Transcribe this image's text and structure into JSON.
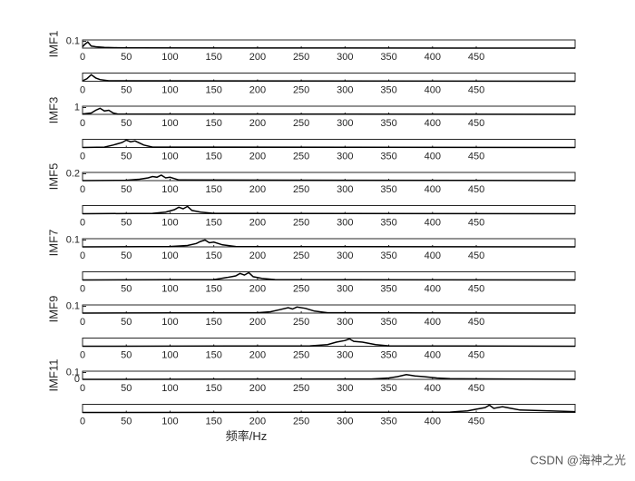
{
  "chart_data": [
    {
      "type": "line",
      "ylabel": "IMF1",
      "color": "#000000",
      "xlim": [
        0,
        563
      ],
      "xticks": [
        0,
        50,
        100,
        150,
        200,
        250,
        300,
        350,
        400,
        450
      ],
      "ylim": [
        0,
        0.12
      ],
      "yticks": [
        0.1
      ],
      "x": [
        0,
        3,
        6,
        10,
        15,
        25,
        40,
        60,
        563
      ],
      "values": [
        0.02,
        0.06,
        0.09,
        0.03,
        0.02,
        0.01,
        0.005,
        0.003,
        0
      ]
    },
    {
      "type": "line",
      "color": "#000000",
      "xlim": [
        0,
        563
      ],
      "xticks": [
        0,
        50,
        100,
        150,
        200,
        250,
        300,
        350,
        400,
        450
      ],
      "ylim": [
        0,
        1
      ],
      "x": [
        0,
        5,
        10,
        15,
        20,
        30,
        563
      ],
      "values": [
        0.05,
        0.3,
        0.8,
        0.4,
        0.2,
        0.05,
        0
      ]
    },
    {
      "type": "line",
      "ylabel": "IMF3",
      "color": "#000000",
      "xlim": [
        0,
        563
      ],
      "xticks": [
        0,
        50,
        100,
        150,
        200,
        250,
        300,
        350,
        400,
        450
      ],
      "ylim": [
        0,
        1.2
      ],
      "yticks": [
        1
      ],
      "x": [
        0,
        10,
        15,
        20,
        25,
        30,
        35,
        40,
        563
      ],
      "values": [
        0.05,
        0.2,
        0.6,
        0.9,
        0.5,
        0.6,
        0.2,
        0.05,
        0
      ]
    },
    {
      "type": "line",
      "color": "#000000",
      "xlim": [
        0,
        563
      ],
      "xticks": [
        0,
        50,
        100,
        150,
        200,
        250,
        300,
        350,
        400,
        450
      ],
      "ylim": [
        0,
        1
      ],
      "x": [
        0,
        25,
        35,
        45,
        50,
        55,
        60,
        70,
        80,
        563
      ],
      "values": [
        0,
        0.05,
        0.3,
        0.6,
        0.9,
        0.7,
        0.8,
        0.3,
        0.05,
        0
      ]
    },
    {
      "type": "line",
      "ylabel": "IMF5",
      "color": "#000000",
      "xlim": [
        0,
        563
      ],
      "xticks": [
        0,
        50,
        100,
        150,
        200,
        250,
        300,
        350,
        400,
        450
      ],
      "ylim": [
        0,
        0.24
      ],
      "yticks": [
        0.2
      ],
      "x": [
        0,
        50,
        65,
        75,
        80,
        85,
        90,
        95,
        100,
        110,
        563
      ],
      "values": [
        0,
        0.01,
        0.04,
        0.08,
        0.12,
        0.1,
        0.16,
        0.08,
        0.1,
        0.02,
        0
      ]
    },
    {
      "type": "line",
      "color": "#000000",
      "xlim": [
        0,
        563
      ],
      "xticks": [
        0,
        50,
        100,
        150,
        200,
        250,
        300,
        350,
        400,
        450
      ],
      "ylim": [
        0,
        1
      ],
      "x": [
        0,
        80,
        95,
        105,
        110,
        115,
        120,
        125,
        135,
        150,
        563
      ],
      "values": [
        0,
        0.05,
        0.2,
        0.5,
        0.8,
        0.6,
        0.9,
        0.4,
        0.2,
        0.05,
        0
      ]
    },
    {
      "type": "line",
      "ylabel": "IMF7",
      "color": "#000000",
      "xlim": [
        0,
        563
      ],
      "xticks": [
        0,
        50,
        100,
        150,
        200,
        250,
        300,
        350,
        400,
        450
      ],
      "ylim": [
        0,
        0.12
      ],
      "yticks": [
        0.1
      ],
      "x": [
        0,
        100,
        120,
        130,
        135,
        140,
        145,
        150,
        160,
        175,
        563
      ],
      "values": [
        0,
        0.005,
        0.02,
        0.05,
        0.08,
        0.1,
        0.06,
        0.07,
        0.03,
        0.005,
        0
      ]
    },
    {
      "type": "line",
      "color": "#000000",
      "xlim": [
        0,
        563
      ],
      "xticks": [
        0,
        50,
        100,
        150,
        200,
        250,
        300,
        350,
        400,
        450
      ],
      "ylim": [
        0,
        1
      ],
      "x": [
        0,
        150,
        165,
        175,
        180,
        185,
        190,
        195,
        205,
        220,
        563
      ],
      "values": [
        0,
        0.05,
        0.3,
        0.5,
        0.8,
        0.6,
        0.9,
        0.4,
        0.2,
        0.05,
        0
      ]
    },
    {
      "type": "line",
      "ylabel": "IMF9",
      "color": "#000000",
      "xlim": [
        0,
        563
      ],
      "xticks": [
        0,
        50,
        100,
        150,
        200,
        250,
        300,
        350,
        400,
        450
      ],
      "ylim": [
        0,
        0.12
      ],
      "yticks": [
        0.1
      ],
      "x": [
        0,
        200,
        215,
        225,
        235,
        240,
        245,
        255,
        265,
        280,
        563
      ],
      "values": [
        0,
        0.005,
        0.02,
        0.05,
        0.08,
        0.06,
        0.09,
        0.07,
        0.03,
        0.005,
        0
      ]
    },
    {
      "type": "line",
      "color": "#000000",
      "xlim": [
        0,
        563
      ],
      "xticks": [
        0,
        50,
        100,
        150,
        200,
        250,
        300,
        350,
        400,
        450
      ],
      "ylim": [
        0,
        1
      ],
      "x": [
        0,
        260,
        280,
        290,
        300,
        305,
        310,
        320,
        335,
        350,
        563
      ],
      "values": [
        0,
        0.05,
        0.2,
        0.5,
        0.7,
        0.9,
        0.6,
        0.5,
        0.2,
        0.05,
        0
      ]
    },
    {
      "type": "line",
      "ylabel": "IMF11",
      "color": "#000000",
      "xlim": [
        0,
        563
      ],
      "xticks": [
        0,
        50,
        100,
        150,
        200,
        250,
        300,
        350,
        400,
        450
      ],
      "ylim": [
        0,
        0.12
      ],
      "yticks": [
        0,
        0.1
      ],
      "x": [
        0,
        330,
        350,
        360,
        370,
        375,
        380,
        390,
        405,
        420,
        563
      ],
      "values": [
        0,
        0.005,
        0.02,
        0.04,
        0.07,
        0.06,
        0.05,
        0.04,
        0.02,
        0.01,
        0
      ]
    },
    {
      "type": "line",
      "xlabel": "频率/Hz",
      "color": "#000000",
      "xlim": [
        0,
        563
      ],
      "xticks": [
        0,
        50,
        100,
        150,
        200,
        250,
        300,
        350,
        400,
        450
      ],
      "ylim": [
        0,
        1
      ],
      "x": [
        0,
        420,
        440,
        450,
        460,
        465,
        470,
        480,
        490,
        500,
        563
      ],
      "values": [
        0,
        0.05,
        0.2,
        0.4,
        0.6,
        0.9,
        0.5,
        0.7,
        0.5,
        0.3,
        0.1
      ]
    }
  ],
  "watermark": "CSDN @海神之光"
}
